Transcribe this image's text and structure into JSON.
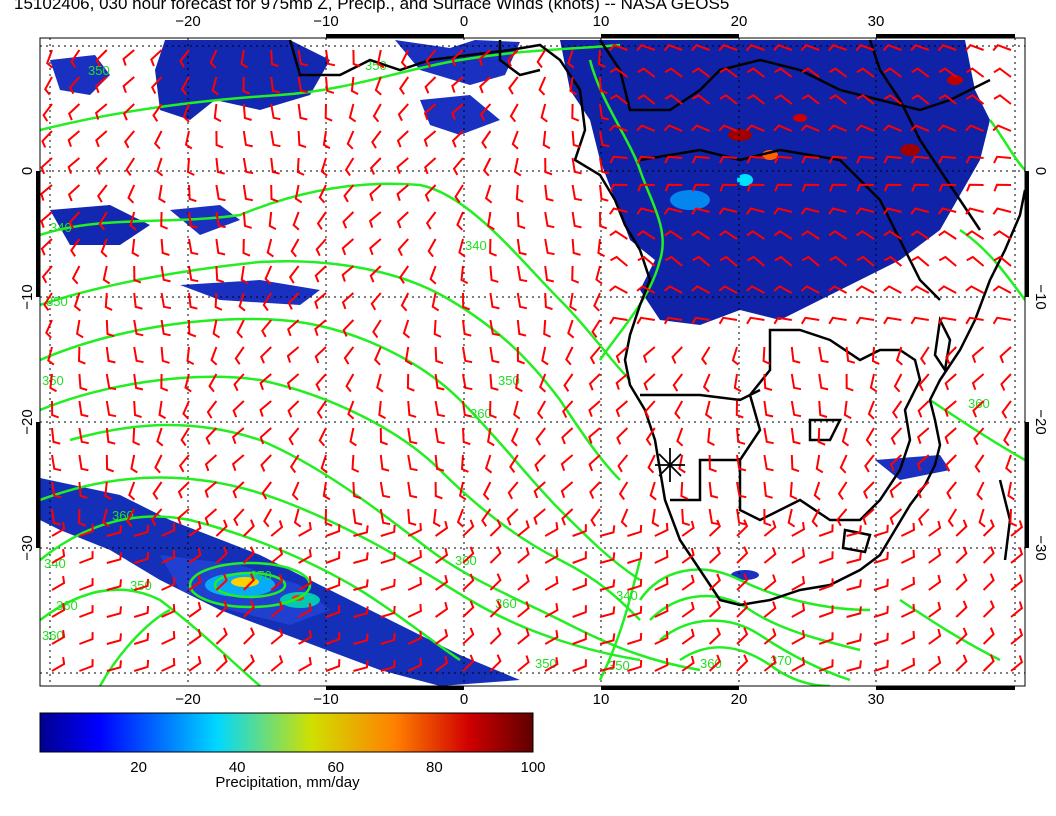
{
  "title": "15102406, 030 hour forecast for 975mb Z, Precip., and Surface Winds (knots) -- NASA GEOS5",
  "map": {
    "lon_ticks": [
      "−20",
      "−10",
      "0",
      "10",
      "20",
      "30"
    ],
    "lat_ticks": [
      "0",
      "−10",
      "−20",
      "−30"
    ],
    "lon_values": [
      -20,
      -10,
      0,
      10,
      20,
      30
    ],
    "lat_values": [
      0,
      -10,
      -20,
      -30
    ],
    "contour_labels": [
      "350",
      "350",
      "340",
      "340",
      "350",
      "350",
      "350",
      "360",
      "360",
      "360",
      "340",
      "350",
      "360",
      "360",
      "360",
      "370",
      "340",
      "350",
      "360",
      "370",
      "350",
      "360"
    ],
    "colors": {
      "wind_barbs": "#ff0000",
      "contours": "#22ee22",
      "coastlines": "#000000",
      "precip_low": "#00008f",
      "precip_high": "#800000"
    },
    "marker": "star-marker"
  },
  "colorbar": {
    "ticks": [
      "20",
      "40",
      "60",
      "80",
      "100"
    ],
    "tick_values": [
      20,
      40,
      60,
      80,
      100
    ],
    "range": [
      0,
      100
    ],
    "caption": "Precipitation, mm/day"
  }
}
